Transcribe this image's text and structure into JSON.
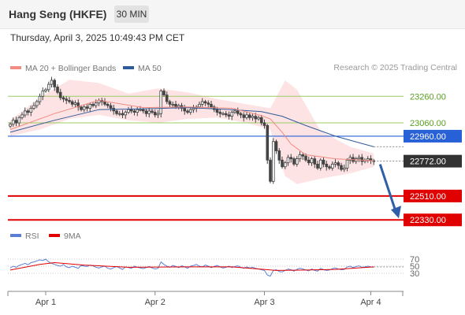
{
  "header": {
    "title": "Hang Seng (HKFE)",
    "timeframe": "30 MIN"
  },
  "datetime": "Thursday, April 3, 2025 10:49:43 PM CET",
  "copyright": "Research © 2025 Trading Central",
  "colors": {
    "ma20": "#f28b82",
    "ma50": "#2f5b9a",
    "bands": "#fde0e0",
    "resistance": "#9ccc65",
    "support": "#e00000",
    "pivot": "#2860d8",
    "last": "#333333",
    "forecast": "#2f5fa8",
    "rsi": "#5b7fd8",
    "rsi_ma": "#e00000"
  },
  "chart_data": [
    {
      "type": "candlestick",
      "legend": [
        {
          "label": "MA 20 + Bollinger Bands",
          "color": "#f28b82"
        },
        {
          "label": "MA 50",
          "color": "#2f5b9a"
        }
      ],
      "x_ticks": [
        "Apr 1",
        "Apr 2",
        "Apr 3",
        "Apr 4"
      ],
      "ylim": [
        22290,
        23475
      ],
      "levels": [
        {
          "value": 23260,
          "label": "23260.00",
          "kind": "resistance"
        },
        {
          "value": 23060,
          "label": "23060.00",
          "kind": "resistance"
        },
        {
          "value": 22960,
          "label": "22960.00",
          "kind": "pivot"
        },
        {
          "value": 22772,
          "label": "22772.00",
          "kind": "last"
        },
        {
          "value": 22510,
          "label": "22510.00",
          "kind": "support"
        },
        {
          "value": 22330,
          "label": "22330.00",
          "kind": "support"
        }
      ],
      "forecast": {
        "from": 22772,
        "to": 22330
      },
      "closes": [
        23050,
        23080,
        23060,
        23100,
        23120,
        23150,
        23140,
        23170,
        23190,
        23220,
        23260,
        23300,
        23310,
        23350,
        23380,
        23330,
        23290,
        23250,
        23240,
        23230,
        23220,
        23200,
        23210,
        23180,
        23160,
        23180,
        23170,
        23200,
        23190,
        23210,
        23230,
        23220,
        23200,
        23190,
        23170,
        23150,
        23130,
        23130,
        23120,
        23140,
        23160,
        23150,
        23140,
        23160,
        23160,
        23150,
        23130,
        23150,
        23140,
        23120,
        23130,
        23300,
        23270,
        23220,
        23200,
        23200,
        23180,
        23190,
        23170,
        23150,
        23140,
        23160,
        23170,
        23180,
        23200,
        23220,
        23210,
        23200,
        23180,
        23160,
        23140,
        23130,
        23130,
        23120,
        23110,
        23140,
        23150,
        23130,
        23120,
        23100,
        23120,
        23100,
        23110,
        23090,
        23100,
        23060,
        23040,
        22780,
        22620,
        22920,
        22850,
        22780,
        22730,
        22760,
        22800,
        22790,
        22750,
        22790,
        22820,
        22810,
        22780,
        22760,
        22790,
        22750,
        22720,
        22780,
        22750,
        22730,
        22720,
        22750,
        22760,
        22740,
        22710,
        22720,
        22780,
        22800,
        22770,
        22790,
        22800,
        22770,
        22780,
        22790,
        22775,
        22772
      ],
      "ma20": [
        [
          0,
          23010
        ],
        [
          15,
          23130
        ],
        [
          30,
          23230
        ],
        [
          45,
          23175
        ],
        [
          60,
          23180
        ],
        [
          75,
          23170
        ],
        [
          85,
          23115
        ],
        [
          88,
          23090
        ],
        [
          92,
          22990
        ],
        [
          95,
          22900
        ],
        [
          100,
          22820
        ],
        [
          110,
          22790
        ],
        [
          123,
          22775
        ]
      ],
      "ma50": [
        [
          0,
          22990
        ],
        [
          15,
          23080
        ],
        [
          30,
          23160
        ],
        [
          45,
          23165
        ],
        [
          60,
          23175
        ],
        [
          75,
          23160
        ],
        [
          85,
          23145
        ],
        [
          92,
          23110
        ],
        [
          100,
          23040
        ],
        [
          110,
          22960
        ],
        [
          123,
          22880
        ]
      ],
      "band_upper": [
        [
          0,
          23080
        ],
        [
          10,
          23250
        ],
        [
          20,
          23385
        ],
        [
          30,
          23360
        ],
        [
          40,
          23280
        ],
        [
          50,
          23320
        ],
        [
          60,
          23290
        ],
        [
          70,
          23240
        ],
        [
          80,
          23200
        ],
        [
          88,
          23170
        ],
        [
          93,
          23380
        ],
        [
          97,
          23310
        ],
        [
          105,
          23000
        ],
        [
          115,
          22880
        ],
        [
          123,
          22830
        ]
      ],
      "band_lower": [
        [
          0,
          22960
        ],
        [
          10,
          23010
        ],
        [
          20,
          23090
        ],
        [
          30,
          23120
        ],
        [
          40,
          23080
        ],
        [
          50,
          23060
        ],
        [
          60,
          23090
        ],
        [
          70,
          23100
        ],
        [
          80,
          23060
        ],
        [
          88,
          23010
        ],
        [
          93,
          22660
        ],
        [
          97,
          22600
        ],
        [
          105,
          22640
        ],
        [
          115,
          22680
        ],
        [
          123,
          22730
        ]
      ]
    },
    {
      "type": "line",
      "legend": [
        {
          "label": "RSI",
          "color": "#5b7fd8"
        },
        {
          "label": "9MA",
          "color": "#e00000"
        }
      ],
      "ylim": [
        20,
        80
      ],
      "y_ticks": [
        "70",
        "50",
        "30"
      ],
      "rsi": [
        45,
        50,
        47,
        52,
        55,
        58,
        54,
        60,
        62,
        65,
        68,
        66,
        70,
        62,
        58,
        55,
        52,
        50,
        55,
        48,
        46,
        50,
        47,
        44,
        52,
        50,
        49,
        53,
        51,
        47,
        45,
        48,
        50,
        44,
        42,
        46,
        49,
        45,
        41,
        48,
        46,
        44,
        50,
        47,
        45,
        43,
        46,
        49,
        45,
        42,
        44,
        62,
        55,
        50,
        47,
        52,
        49,
        46,
        51,
        48,
        44,
        50,
        52,
        55,
        50,
        48,
        53,
        50,
        46,
        49,
        52,
        48,
        45,
        47,
        50,
        46,
        49,
        51,
        47,
        44,
        48,
        45,
        47,
        44,
        42,
        40,
        38,
        25,
        22,
        38,
        40,
        35,
        34,
        38,
        42,
        40,
        36,
        41,
        44,
        42,
        39,
        37,
        42,
        38,
        36,
        44,
        40,
        38,
        39,
        43,
        45,
        42,
        40,
        41,
        48,
        50,
        46,
        49,
        51,
        47,
        48,
        50,
        48,
        47
      ],
      "ma": [
        [
          0,
          39
        ],
        [
          10,
          55
        ],
        [
          15,
          60
        ],
        [
          25,
          53
        ],
        [
          40,
          47
        ],
        [
          60,
          48
        ],
        [
          75,
          48
        ],
        [
          90,
          38
        ],
        [
          100,
          39
        ],
        [
          110,
          41
        ],
        [
          123,
          48
        ]
      ]
    }
  ]
}
